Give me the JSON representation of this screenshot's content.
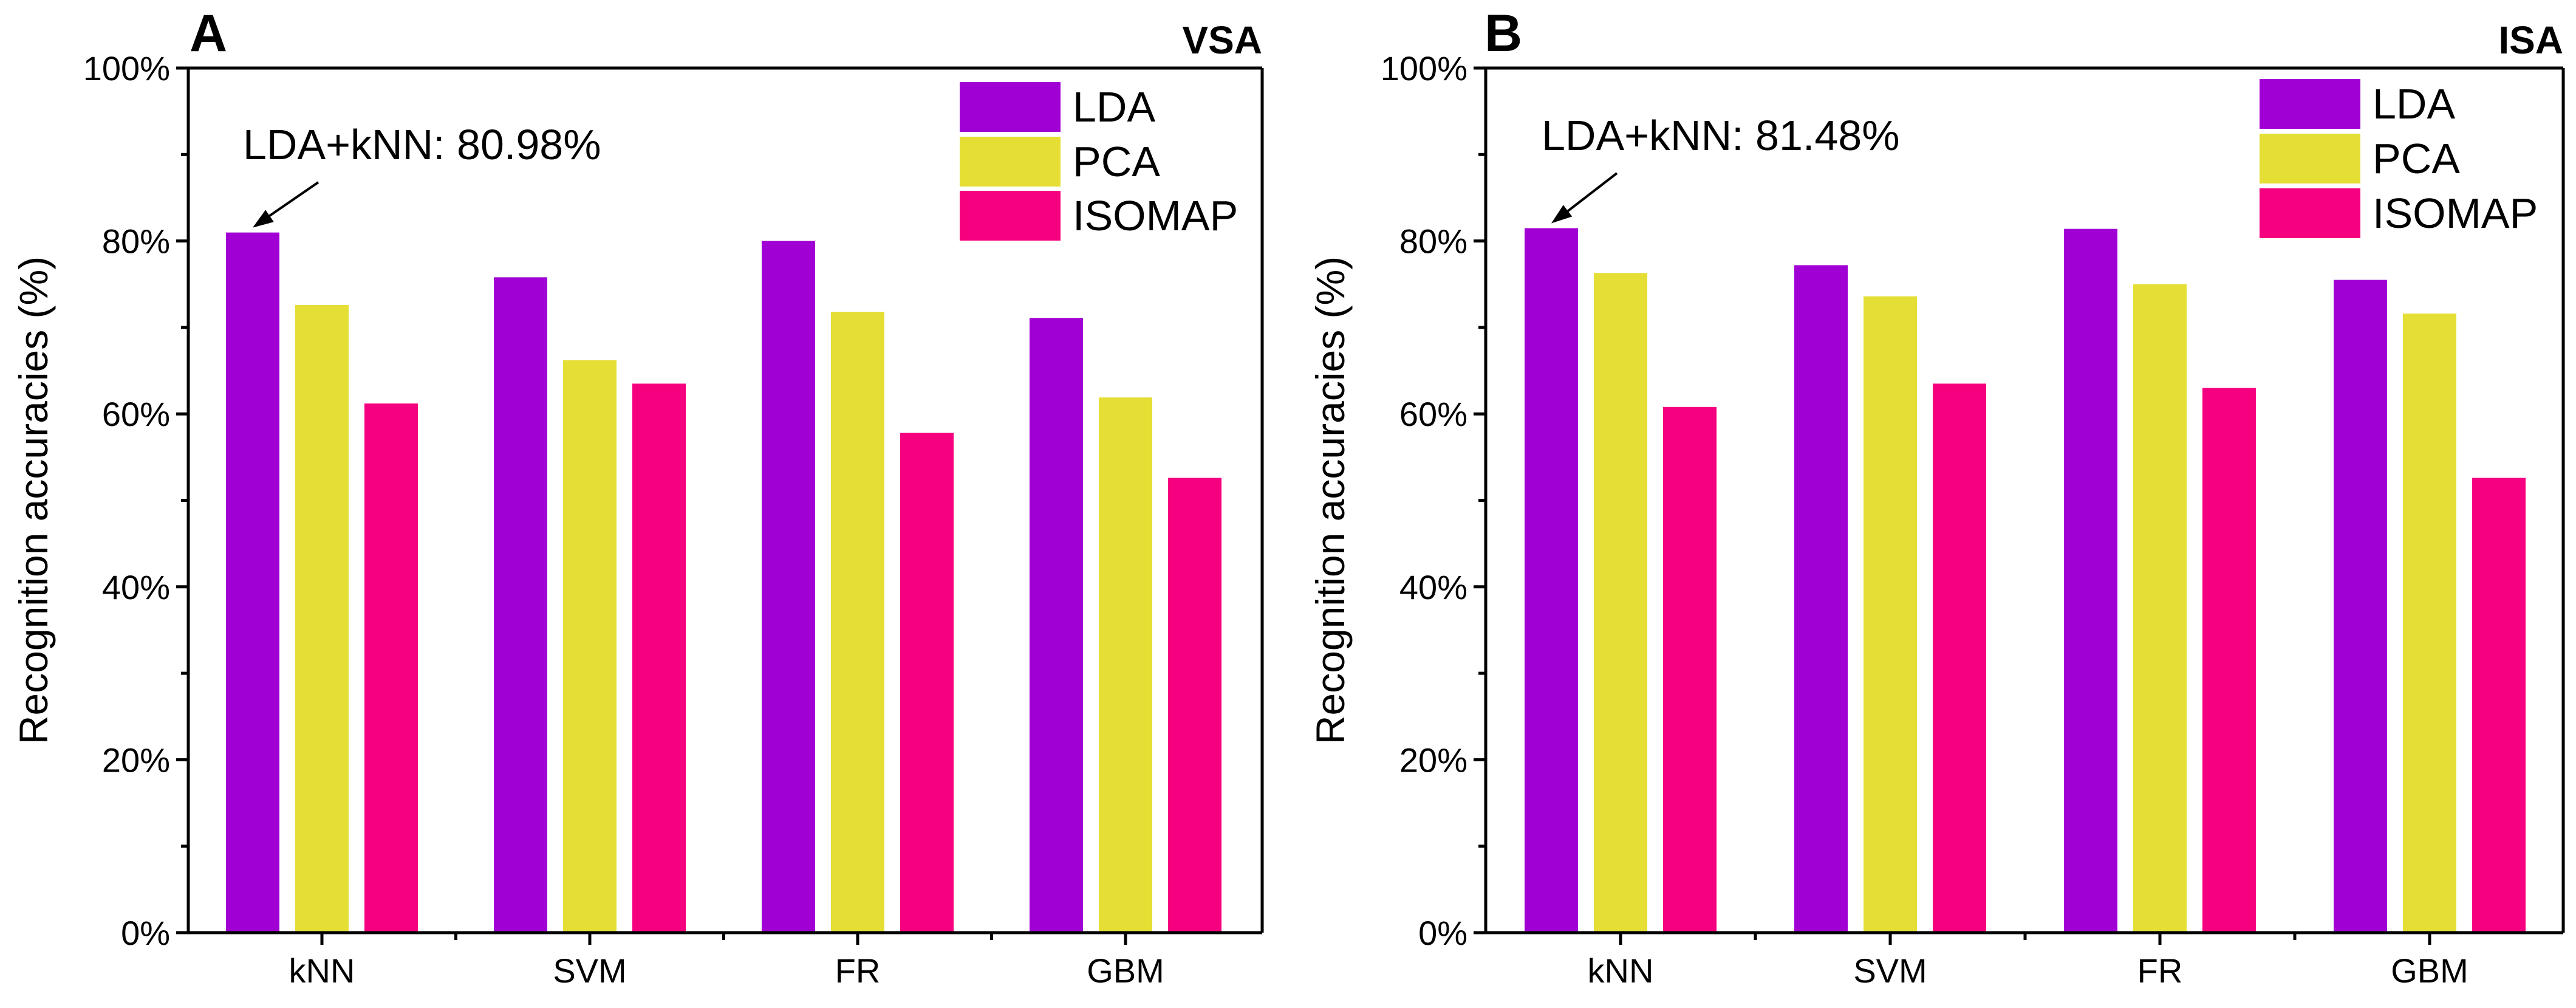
{
  "chart_data": [
    {
      "type": "bar",
      "panel": "A",
      "title": "VSA",
      "ylabel": "Recognition accuracies (%)",
      "xlabel": "",
      "ylim": [
        0,
        100
      ],
      "yticks": [
        0,
        20,
        40,
        60,
        80,
        100
      ],
      "yticklabels": [
        "0%",
        "20%",
        "40%",
        "60%",
        "80%",
        "100%"
      ],
      "categories": [
        "kNN",
        "SVM",
        "FR",
        "GBM"
      ],
      "series": [
        {
          "name": "LDA",
          "color": "#a100d4",
          "values": [
            80.98,
            75.8,
            80.0,
            71.1
          ]
        },
        {
          "name": "PCA",
          "color": "#e5de35",
          "values": [
            72.6,
            66.2,
            71.8,
            61.9
          ]
        },
        {
          "name": "ISOMAP",
          "color": "#f5007f",
          "values": [
            61.2,
            63.5,
            57.8,
            52.6
          ]
        }
      ],
      "legend": "top-right",
      "grid": false,
      "annotation": {
        "text": "LDA+kNN: 80.98%",
        "series": "LDA",
        "category": "kNN",
        "value": 80.98
      }
    },
    {
      "type": "bar",
      "panel": "B",
      "title": "ISA",
      "ylabel": "Recognition accuracies (%)",
      "xlabel": "",
      "ylim": [
        0,
        100
      ],
      "yticks": [
        0,
        20,
        40,
        60,
        80,
        100
      ],
      "yticklabels": [
        "0%",
        "20%",
        "40%",
        "60%",
        "80%",
        "100%"
      ],
      "categories": [
        "kNN",
        "SVM",
        "FR",
        "GBM"
      ],
      "series": [
        {
          "name": "LDA",
          "color": "#a100d4",
          "values": [
            81.48,
            77.2,
            81.4,
            75.5
          ]
        },
        {
          "name": "PCA",
          "color": "#e5de35",
          "values": [
            76.3,
            73.6,
            75.0,
            71.6
          ]
        },
        {
          "name": "ISOMAP",
          "color": "#f5007f",
          "values": [
            60.8,
            63.5,
            63.0,
            52.6
          ]
        }
      ],
      "legend": "top-right",
      "grid": false,
      "annotation": {
        "text": "LDA+kNN: 81.48%",
        "series": "LDA",
        "category": "kNN",
        "value": 81.48
      }
    }
  ]
}
